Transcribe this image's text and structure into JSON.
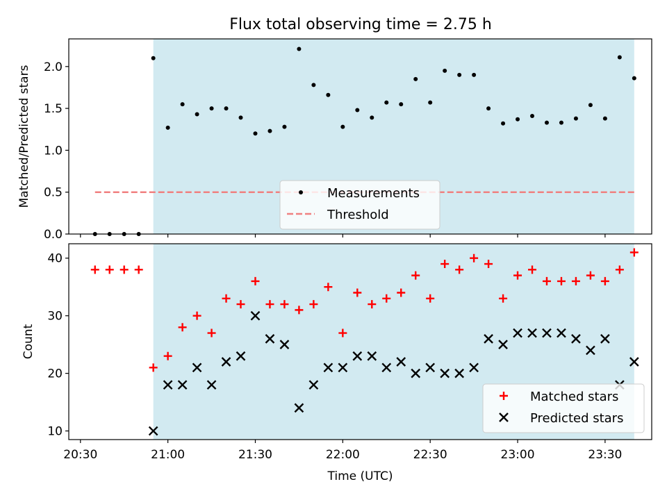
{
  "chart_data": [
    {
      "type": "scatter",
      "title": "Flux total observing time = 2.75 h",
      "xlabel": "",
      "ylabel": "Matched/Predicted stars",
      "xlim": [
        "20:26",
        "23:46"
      ],
      "ylim": [
        0,
        2.33
      ],
      "x_ticks": [
        "20:30",
        "21:00",
        "21:30",
        "22:00",
        "22:30",
        "23:00",
        "23:30"
      ],
      "x_tick_labels_visible": false,
      "y_ticks": [
        "0.0",
        "0.5",
        "1.0",
        "1.5",
        "2.0"
      ],
      "shaded_region": {
        "x_start": "20:55",
        "x_end": "23:40",
        "color": "#add8e6"
      },
      "series": [
        {
          "name": "Measurements",
          "marker": "point",
          "color": "#000000",
          "x": [
            "20:35",
            "20:40",
            "20:45",
            "20:50",
            "20:55",
            "21:00",
            "21:05",
            "21:10",
            "21:15",
            "21:20",
            "21:25",
            "21:30",
            "21:35",
            "21:40",
            "21:45",
            "21:50",
            "21:55",
            "22:00",
            "22:05",
            "22:10",
            "22:15",
            "22:20",
            "22:25",
            "22:30",
            "22:35",
            "22:40",
            "22:45",
            "22:50",
            "22:55",
            "23:00",
            "23:05",
            "23:10",
            "23:15",
            "23:20",
            "23:25",
            "23:30",
            "23:35",
            "23:40"
          ],
          "values": [
            0,
            0,
            0,
            0,
            2.1,
            1.27,
            1.55,
            1.43,
            1.5,
            1.5,
            1.39,
            1.2,
            1.23,
            1.28,
            2.21,
            1.78,
            1.66,
            1.28,
            1.48,
            1.39,
            1.57,
            1.55,
            1.85,
            1.57,
            1.95,
            1.9,
            1.9,
            1.5,
            1.32,
            1.37,
            1.41,
            1.33,
            1.33,
            1.38,
            1.54,
            1.38,
            2.11,
            1.86
          ]
        },
        {
          "name": "Threshold",
          "line_style": "dashed",
          "color": "#f08080",
          "x": [
            "20:35",
            "23:40"
          ],
          "values": [
            0.5,
            0.5
          ]
        }
      ],
      "legend_position": "bottom-center",
      "grid": false
    },
    {
      "type": "scatter",
      "title": "",
      "xlabel": "Time (UTC)",
      "ylabel": "Count",
      "xlim": [
        "20:26",
        "23:46"
      ],
      "ylim": [
        8.5,
        42.5
      ],
      "x_ticks": [
        "20:30",
        "21:00",
        "21:30",
        "22:00",
        "22:30",
        "23:00",
        "23:30"
      ],
      "x_tick_labels_visible": true,
      "y_ticks": [
        "10",
        "20",
        "30",
        "40"
      ],
      "shaded_region": {
        "x_start": "20:55",
        "x_end": "23:40",
        "color": "#add8e6"
      },
      "series": [
        {
          "name": "Matched stars",
          "marker": "plus",
          "color": "#ff0000",
          "x": [
            "20:35",
            "20:40",
            "20:45",
            "20:50",
            "20:55",
            "21:00",
            "21:05",
            "21:10",
            "21:15",
            "21:20",
            "21:25",
            "21:30",
            "21:35",
            "21:40",
            "21:45",
            "21:50",
            "21:55",
            "22:00",
            "22:05",
            "22:10",
            "22:15",
            "22:20",
            "22:25",
            "22:30",
            "22:35",
            "22:40",
            "22:45",
            "22:50",
            "22:55",
            "23:00",
            "23:05",
            "23:10",
            "23:15",
            "23:20",
            "23:25",
            "23:30",
            "23:35",
            "23:40"
          ],
          "values": [
            38,
            38,
            38,
            38,
            21,
            23,
            28,
            30,
            27,
            33,
            32,
            36,
            32,
            32,
            31,
            32,
            35,
            27,
            34,
            32,
            33,
            34,
            37,
            33,
            39,
            38,
            40,
            39,
            33,
            37,
            38,
            36,
            36,
            36,
            37,
            36,
            38,
            41
          ]
        },
        {
          "name": "Predicted stars",
          "marker": "x",
          "color": "#000000",
          "x": [
            "20:55",
            "21:00",
            "21:05",
            "21:10",
            "21:15",
            "21:20",
            "21:25",
            "21:30",
            "21:35",
            "21:40",
            "21:45",
            "21:50",
            "21:55",
            "22:00",
            "22:05",
            "22:10",
            "22:15",
            "22:20",
            "22:25",
            "22:30",
            "22:35",
            "22:40",
            "22:45",
            "22:50",
            "22:55",
            "23:00",
            "23:05",
            "23:10",
            "23:15",
            "23:20",
            "23:25",
            "23:30",
            "23:35",
            "23:40"
          ],
          "values": [
            10,
            18,
            18,
            21,
            18,
            22,
            23,
            30,
            26,
            25,
            14,
            18,
            21,
            21,
            23,
            23,
            21,
            22,
            20,
            21,
            20,
            20,
            21,
            26,
            25,
            27,
            27,
            27,
            27,
            26,
            24,
            26,
            18,
            22
          ]
        }
      ],
      "legend_position": "bottom-right",
      "grid": false
    }
  ]
}
